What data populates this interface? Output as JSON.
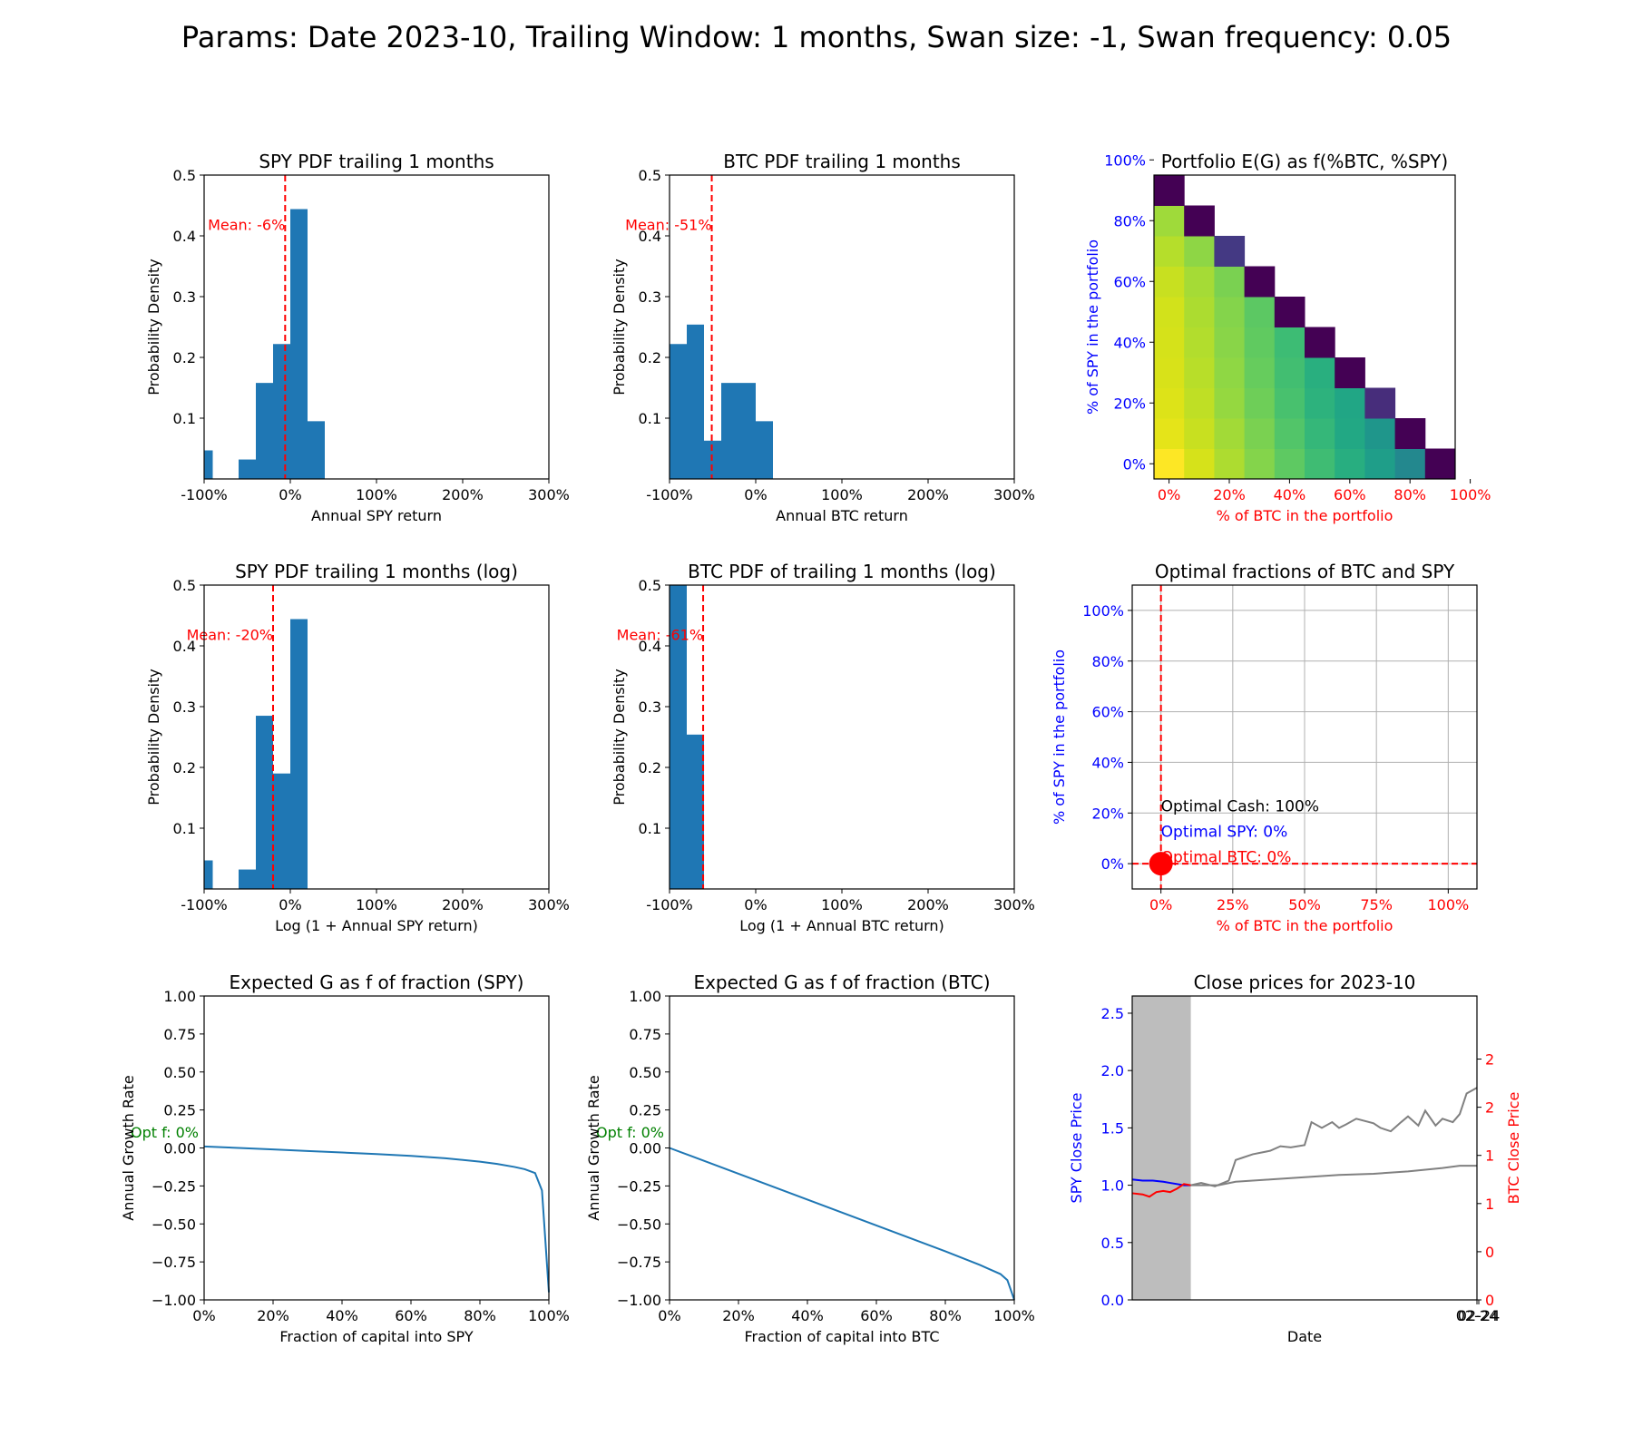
{
  "suptitle": "Params: Date 2023-10, Trailing Window:  1 months,  Swan size: -1, Swan frequency: 0.05",
  "colors": {
    "bar": "#1f77b4",
    "mean": "#ff0000",
    "spy_axis": "#0000ff",
    "btc_axis": "#ff0000",
    "opt": "#008000",
    "grid": "#b0b0b0",
    "span": "#bdbdbd",
    "gray_line": "#808080"
  },
  "chart_data": [
    {
      "id": "spy-pdf",
      "type": "bar",
      "title": "SPY PDF trailing 1 months",
      "xlabel": "Annual SPY return",
      "ylabel": "Probability Density",
      "xlim": [
        -1.0,
        3.0
      ],
      "ylim": [
        0,
        0.5
      ],
      "xticks": [
        -1,
        0,
        1,
        2,
        3
      ],
      "xtick_labels": [
        "-100%",
        "0%",
        "100%",
        "200%",
        "300%"
      ],
      "yticks": [
        0.1,
        0.2,
        0.3,
        0.4,
        0.5
      ],
      "ytick_labels": [
        "0.1",
        "0.2",
        "0.3",
        "0.4",
        "0.5"
      ],
      "bins": [
        [
          -1.0,
          -0.9,
          0.047
        ],
        [
          -0.6,
          -0.4,
          0.032
        ],
        [
          -0.4,
          -0.2,
          0.158
        ],
        [
          -0.2,
          0.0,
          0.222
        ],
        [
          0.0,
          0.2,
          0.444
        ],
        [
          0.2,
          0.4,
          0.095
        ]
      ],
      "mean": -0.06,
      "mean_label": "Mean: -6%"
    },
    {
      "id": "btc-pdf",
      "type": "bar",
      "title": "BTC PDF trailing 1 months",
      "xlabel": "Annual BTC return",
      "ylabel": "Probability Density",
      "xlim": [
        -1.0,
        3.0
      ],
      "ylim": [
        0,
        0.5
      ],
      "xticks": [
        -1,
        0,
        1,
        2,
        3
      ],
      "xtick_labels": [
        "-100%",
        "0%",
        "100%",
        "200%",
        "300%"
      ],
      "yticks": [
        0.1,
        0.2,
        0.3,
        0.4,
        0.5
      ],
      "ytick_labels": [
        "0.1",
        "0.2",
        "0.3",
        "0.4",
        "0.5"
      ],
      "bins": [
        [
          -1.0,
          -0.8,
          0.222
        ],
        [
          -0.8,
          -0.6,
          0.254
        ],
        [
          -0.6,
          -0.4,
          0.063
        ],
        [
          -0.4,
          -0.2,
          0.158
        ],
        [
          -0.2,
          0.0,
          0.158
        ],
        [
          0.0,
          0.2,
          0.095
        ]
      ],
      "mean": -0.51,
      "mean_label": "Mean: -51%"
    },
    {
      "id": "heatmap",
      "type": "heatmap",
      "title": "Portfolio E(G) as f(%BTC, %SPY)",
      "xlabel": "% of BTC in the portfolio",
      "ylabel": "% of SPY in the portfolio",
      "xtick_labels": [
        "0%",
        "20%",
        "40%",
        "60%",
        "80%",
        "100%"
      ],
      "ytick_labels": [
        "0%",
        "20%",
        "40%",
        "60%",
        "80%",
        "100%"
      ],
      "rows": [
        [
          "#fde725",
          "#d6e21a",
          "#addc30",
          "#84d44b",
          "#5ec962",
          "#3fbc73",
          "#28ae80",
          "#1f9e89",
          "#23888e",
          "#440154"
        ],
        [
          "#e5e419",
          "#c8e020",
          "#a2da37",
          "#7ad151",
          "#52c569",
          "#35b779",
          "#22a884",
          "#1f968b",
          "#440154"
        ],
        [
          "#dde318",
          "#bfdf25",
          "#95d840",
          "#6ece58",
          "#48c16e",
          "#2db27d",
          "#21a685",
          "#472d7b"
        ],
        [
          "#d8e219",
          "#b8de29",
          "#8fd744",
          "#66cc5d",
          "#42be71",
          "#29af7f",
          "#440154"
        ],
        [
          "#d5e21a",
          "#b2dd2d",
          "#89d548",
          "#60ca60",
          "#3dbc74",
          "#440154"
        ],
        [
          "#d2e21b",
          "#acdc30",
          "#84d44b",
          "#5cc863",
          "#440154"
        ],
        [
          "#c8e020",
          "#a5db36",
          "#7ad151",
          "#440154"
        ],
        [
          "#b5de2b",
          "#8ed645",
          "#443983"
        ],
        [
          "#9fda3a",
          "#440154"
        ],
        [
          "#440154"
        ]
      ]
    },
    {
      "id": "spy-pdf-log",
      "type": "bar",
      "title": "SPY PDF trailing 1 months (log)",
      "xlabel": "Log (1 + Annual SPY return)",
      "ylabel": "Probability Density",
      "xlim": [
        -1.0,
        3.0
      ],
      "ylim": [
        0,
        0.5
      ],
      "xticks": [
        -1,
        0,
        1,
        2,
        3
      ],
      "xtick_labels": [
        "-100%",
        "0%",
        "100%",
        "200%",
        "300%"
      ],
      "yticks": [
        0.1,
        0.2,
        0.3,
        0.4,
        0.5
      ],
      "ytick_labels": [
        "0.1",
        "0.2",
        "0.3",
        "0.4",
        "0.5"
      ],
      "bins": [
        [
          -1.0,
          -0.9,
          0.047
        ],
        [
          -0.6,
          -0.4,
          0.032
        ],
        [
          -0.4,
          -0.2,
          0.285
        ],
        [
          -0.2,
          0.0,
          0.19
        ],
        [
          0.0,
          0.2,
          0.444
        ]
      ],
      "mean": -0.2,
      "mean_label": "Mean: -20%"
    },
    {
      "id": "btc-pdf-log",
      "type": "bar",
      "title": "BTC PDF of trailing 1 months (log)",
      "xlabel": "Log (1 + Annual BTC return)",
      "ylabel": "Probability Density",
      "xlim": [
        -1.0,
        3.0
      ],
      "ylim": [
        0,
        0.5
      ],
      "xticks": [
        -1,
        0,
        1,
        2,
        3
      ],
      "xtick_labels": [
        "-100%",
        "0%",
        "100%",
        "200%",
        "300%"
      ],
      "yticks": [
        0.1,
        0.2,
        0.3,
        0.4,
        0.5
      ],
      "ytick_labels": [
        "0.1",
        "0.2",
        "0.3",
        "0.4",
        "0.5"
      ],
      "bins": [
        [
          -1.0,
          -0.8,
          0.6
        ],
        [
          -0.8,
          -0.6,
          0.254
        ]
      ],
      "mean": -0.61,
      "mean_label": "Mean: -61%"
    },
    {
      "id": "optimal",
      "type": "scatter",
      "title": "Optimal fractions of BTC and SPY",
      "xlabel": "% of BTC in the portfolio",
      "ylabel": "% of SPY in the portfolio",
      "xlim": [
        -0.1,
        1.1
      ],
      "ylim": [
        -0.1,
        1.1
      ],
      "grid": true,
      "xticks": [
        0,
        0.25,
        0.5,
        0.75,
        1.0
      ],
      "xtick_labels": [
        "0%",
        "25%",
        "50%",
        "75%",
        "100%"
      ],
      "yticks": [
        0,
        0.2,
        0.4,
        0.6,
        0.8,
        1.0
      ],
      "ytick_labels": [
        "0%",
        "20%",
        "40%",
        "60%",
        "80%",
        "100%"
      ],
      "point": [
        0,
        0
      ],
      "annotations": [
        "Optimal Cash: 100%",
        "Optimal SPY: 0%",
        "Optimal BTC: 0%"
      ]
    },
    {
      "id": "spy-growth",
      "type": "line",
      "title": "Expected G as f of fraction (SPY)",
      "xlabel": "Fraction of capital into SPY",
      "ylabel": "Annual Growth Rate",
      "xlim": [
        0,
        1
      ],
      "ylim": [
        -1,
        1
      ],
      "xticks": [
        0,
        0.2,
        0.4,
        0.6,
        0.8,
        1.0
      ],
      "xtick_labels": [
        "0%",
        "20%",
        "40%",
        "60%",
        "80%",
        "100%"
      ],
      "yticks": [
        -1,
        -0.75,
        -0.5,
        -0.25,
        0,
        0.25,
        0.5,
        0.75,
        1.0
      ],
      "ytick_labels": [
        "−1.00",
        "−0.75",
        "−0.50",
        "−0.25",
        "0.00",
        "0.25",
        "0.50",
        "0.75",
        "1.00"
      ],
      "x": [
        0,
        0.1,
        0.2,
        0.3,
        0.4,
        0.5,
        0.6,
        0.7,
        0.8,
        0.85,
        0.9,
        0.93,
        0.96,
        0.98,
        1.0
      ],
      "y": [
        0.01,
        0.0,
        -0.01,
        -0.02,
        -0.03,
        -0.04,
        -0.052,
        -0.068,
        -0.09,
        -0.105,
        -0.125,
        -0.14,
        -0.165,
        -0.28,
        -0.95
      ],
      "opt_label": "Opt f: 0%"
    },
    {
      "id": "btc-growth",
      "type": "line",
      "title": "Expected G as f of fraction (BTC)",
      "xlabel": "Fraction of capital into BTC",
      "ylabel": "Annual Growth Rate",
      "xlim": [
        0,
        1
      ],
      "ylim": [
        -1,
        1
      ],
      "xticks": [
        0,
        0.2,
        0.4,
        0.6,
        0.8,
        1.0
      ],
      "xtick_labels": [
        "0%",
        "20%",
        "40%",
        "60%",
        "80%",
        "100%"
      ],
      "yticks": [
        -1,
        -0.75,
        -0.5,
        -0.25,
        0,
        0.25,
        0.5,
        0.75,
        1.0
      ],
      "ytick_labels": [
        "−1.00",
        "−0.75",
        "−0.50",
        "−0.25",
        "0.00",
        "0.25",
        "0.50",
        "0.75",
        "1.00"
      ],
      "x": [
        0,
        0.2,
        0.4,
        0.6,
        0.8,
        0.9,
        0.96,
        0.98,
        1.0
      ],
      "y": [
        0.0,
        -0.17,
        -0.34,
        -0.51,
        -0.68,
        -0.77,
        -0.83,
        -0.87,
        -1.0
      ],
      "opt_label": "Opt f: 0%"
    },
    {
      "id": "close-prices",
      "type": "line",
      "title": "Close prices for 2023-10",
      "xlabel": "Date",
      "ylabel": "SPY Close Price",
      "ylabel_right": "BTC Close Price",
      "xlim": [
        0,
        1
      ],
      "ylim": [
        0,
        2.65
      ],
      "ylim_right": [
        0,
        2.65
      ],
      "yticks": [
        0,
        0.5,
        1.0,
        1.5,
        2.0,
        2.5
      ],
      "ytick_labels": [
        "0.0",
        "0.5",
        "1.0",
        "1.5",
        "2.0",
        "2.5"
      ],
      "yticks_right": [
        0,
        0.42,
        0.84,
        1.26,
        1.68,
        2.1
      ],
      "ytick_labels_right": [
        "0",
        "0",
        "1",
        "1",
        "2",
        "2"
      ],
      "xtick_labels": [
        "02-24",
        "02-24"
      ],
      "span": [
        0,
        0.17
      ],
      "series": [
        {
          "color": "#0000ff",
          "x": [
            0,
            0.03,
            0.06,
            0.09,
            0.11,
            0.13,
            0.15,
            0.17
          ],
          "y": [
            1.05,
            1.04,
            1.04,
            1.03,
            1.02,
            1.01,
            1.0,
            1.0
          ]
        },
        {
          "color": "#ff0000",
          "x": [
            0,
            0.03,
            0.05,
            0.07,
            0.09,
            0.11,
            0.13,
            0.15,
            0.17
          ],
          "y": [
            0.93,
            0.92,
            0.9,
            0.94,
            0.95,
            0.94,
            0.97,
            1.01,
            1.0
          ]
        },
        {
          "color": "#808080",
          "x": [
            0.17,
            0.25,
            0.3,
            0.4,
            0.5,
            0.6,
            0.7,
            0.8,
            0.9,
            0.95,
            1.0
          ],
          "y": [
            1.0,
            1.0,
            1.03,
            1.05,
            1.07,
            1.09,
            1.1,
            1.12,
            1.15,
            1.17,
            1.17
          ]
        },
        {
          "color": "#808080",
          "x": [
            0.17,
            0.2,
            0.24,
            0.28,
            0.3,
            0.32,
            0.35,
            0.4,
            0.43,
            0.46,
            0.5,
            0.52,
            0.55,
            0.58,
            0.6,
            0.62,
            0.65,
            0.7,
            0.72,
            0.75,
            0.78,
            0.8,
            0.83,
            0.85,
            0.88,
            0.9,
            0.93,
            0.95,
            0.97,
            1.0
          ],
          "y": [
            1.0,
            1.02,
            0.99,
            1.04,
            1.22,
            1.24,
            1.27,
            1.3,
            1.34,
            1.33,
            1.35,
            1.55,
            1.5,
            1.55,
            1.5,
            1.53,
            1.58,
            1.54,
            1.5,
            1.47,
            1.55,
            1.6,
            1.52,
            1.65,
            1.52,
            1.58,
            1.55,
            1.62,
            1.8,
            1.85
          ]
        }
      ]
    }
  ]
}
